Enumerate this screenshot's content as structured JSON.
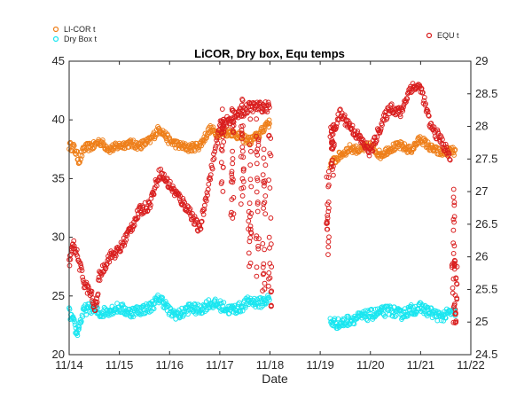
{
  "chart_data": {
    "type": "scatter",
    "title": "LiCOR, Dry box, Equ temps",
    "xlabel": "Date",
    "ylabel": "",
    "ylabel_right": "",
    "x_ticks": [
      "11/14",
      "11/15",
      "11/16",
      "11/17",
      "11/18",
      "11/19",
      "11/20",
      "11/21",
      "11/22"
    ],
    "xlim": [
      0,
      8
    ],
    "ylim": [
      20,
      45
    ],
    "ylim_right": [
      24.5,
      29
    ],
    "y_ticks": [
      20,
      25,
      30,
      35,
      40,
      45
    ],
    "y_ticks_right": [
      24.5,
      25,
      25.5,
      26,
      26.5,
      27,
      27.5,
      28,
      28.5,
      29
    ],
    "grid": false,
    "series": [
      {
        "name": "LI-COR t",
        "axis": "left",
        "color": "#EE7F1A",
        "marker": "open-circle",
        "anchors": [
          [
            0,
            37.8
          ],
          [
            0.1,
            37.6
          ],
          [
            0.2,
            36.5
          ],
          [
            0.3,
            37.6
          ],
          [
            0.5,
            37.8
          ],
          [
            0.6,
            38.2
          ],
          [
            0.8,
            37.5
          ],
          [
            1,
            37.8
          ],
          [
            1.2,
            38.0
          ],
          [
            1.4,
            37.8
          ],
          [
            1.6,
            38.2
          ],
          [
            1.8,
            39.3
          ],
          [
            2,
            38.2
          ],
          [
            2.2,
            37.8
          ],
          [
            2.4,
            37.6
          ],
          [
            2.6,
            37.8
          ],
          [
            2.8,
            39.2
          ],
          [
            3,
            38.8
          ],
          [
            3.2,
            39.0
          ],
          [
            3.4,
            38.6
          ],
          [
            3.6,
            38.2
          ],
          [
            3.8,
            38.8
          ],
          [
            3.95,
            39.8
          ],
          [
            4.0,
            39.6
          ],
          null,
          [
            5.2,
            36.2
          ],
          [
            5.4,
            37.0
          ],
          [
            5.6,
            37.6
          ],
          [
            5.8,
            37.4
          ],
          [
            6.0,
            37.8
          ],
          [
            6.2,
            37.0
          ],
          [
            6.4,
            37.6
          ],
          [
            6.6,
            37.8
          ],
          [
            6.8,
            37.4
          ],
          [
            7.0,
            38.4
          ],
          [
            7.2,
            37.6
          ],
          [
            7.4,
            37.2
          ],
          [
            7.6,
            37.4
          ],
          [
            7.7,
            37.2
          ]
        ],
        "spread": 0.35
      },
      {
        "name": "Dry Box t",
        "axis": "left",
        "color": "#19E6F0",
        "marker": "open-circle",
        "anchors": [
          [
            0,
            23.6
          ],
          [
            0.1,
            22.6
          ],
          [
            0.15,
            21.8
          ],
          [
            0.2,
            22.5
          ],
          [
            0.3,
            23.8
          ],
          [
            0.45,
            24.0
          ],
          [
            0.6,
            23.5
          ],
          [
            0.8,
            23.8
          ],
          [
            1,
            24.0
          ],
          [
            1.2,
            23.6
          ],
          [
            1.4,
            23.8
          ],
          [
            1.6,
            24.0
          ],
          [
            1.8,
            24.8
          ],
          [
            1.9,
            24.4
          ],
          [
            2,
            23.6
          ],
          [
            2.2,
            23.4
          ],
          [
            2.4,
            24.0
          ],
          [
            2.6,
            23.8
          ],
          [
            2.8,
            24.4
          ],
          [
            3,
            24.2
          ],
          [
            3.2,
            23.8
          ],
          [
            3.4,
            24.0
          ],
          [
            3.6,
            24.6
          ],
          [
            3.8,
            24.4
          ],
          [
            4.0,
            24.8
          ],
          null,
          [
            5.2,
            22.8
          ],
          [
            5.4,
            22.6
          ],
          [
            5.6,
            23.0
          ],
          [
            5.8,
            23.2
          ],
          [
            6.0,
            23.4
          ],
          [
            6.2,
            23.6
          ],
          [
            6.4,
            23.8
          ],
          [
            6.6,
            23.4
          ],
          [
            6.8,
            23.8
          ],
          [
            7.0,
            24.0
          ],
          [
            7.2,
            23.6
          ],
          [
            7.4,
            23.2
          ],
          [
            7.6,
            23.6
          ],
          [
            7.7,
            23.4
          ]
        ],
        "spread": 0.45
      },
      {
        "name": "EQU t",
        "axis": "right",
        "color": "#D91E1E",
        "marker": "open-circle",
        "anchors": [
          [
            0,
            25.9
          ],
          [
            0.05,
            26.1
          ],
          [
            0.1,
            26.2
          ],
          [
            0.2,
            25.9
          ],
          [
            0.3,
            25.6
          ],
          [
            0.45,
            25.4
          ],
          [
            0.5,
            25.2
          ],
          [
            0.55,
            25.3
          ],
          [
            0.6,
            25.7
          ],
          [
            0.8,
            26.0
          ],
          [
            1,
            26.1
          ],
          [
            1.2,
            26.4
          ],
          [
            1.4,
            26.7
          ],
          [
            1.6,
            26.8
          ],
          [
            1.8,
            27.3
          ],
          [
            2,
            27.1
          ],
          [
            2.2,
            26.9
          ],
          [
            2.4,
            26.7
          ],
          [
            2.6,
            26.4
          ],
          [
            2.8,
            27.2
          ],
          [
            3,
            28.0
          ],
          [
            3.2,
            28.1
          ],
          [
            3.4,
            28.2
          ],
          [
            3.6,
            28.3
          ],
          [
            3.8,
            28.3
          ],
          [
            4.0,
            28.3
          ],
          null,
          [
            5.2,
            27.9
          ],
          [
            5.3,
            28.0
          ],
          [
            5.4,
            28.2
          ],
          [
            5.6,
            28.0
          ],
          [
            5.8,
            27.8
          ],
          [
            6.0,
            27.6
          ],
          [
            6.2,
            28.0
          ],
          [
            6.4,
            28.3
          ],
          [
            6.6,
            28.2
          ],
          [
            6.8,
            28.6
          ],
          [
            7.0,
            28.6
          ],
          [
            7.2,
            28.0
          ],
          [
            7.4,
            27.8
          ],
          [
            7.6,
            27.5
          ]
        ],
        "spread": 0.08,
        "scatter_columns": [
          {
            "x": 3.05,
            "low": 27.0,
            "high": 28.3
          },
          {
            "x": 3.25,
            "low": 26.5,
            "high": 28.3
          },
          {
            "x": 3.45,
            "low": 26.8,
            "high": 28.5
          },
          {
            "x": 3.6,
            "low": 25.8,
            "high": 28.3
          },
          {
            "x": 3.75,
            "low": 25.6,
            "high": 28.2
          },
          {
            "x": 3.88,
            "low": 25.4,
            "high": 28.0
          },
          {
            "x": 4.0,
            "low": 25.2,
            "high": 28.3
          },
          {
            "x": 5.15,
            "low": 26.0,
            "high": 27.4
          },
          {
            "x": 5.25,
            "low": 27.2,
            "high": 28.0
          },
          {
            "x": 7.65,
            "low": 24.9,
            "high": 27.2
          },
          {
            "x": 7.7,
            "low": 24.95,
            "high": 26.0
          }
        ]
      }
    ],
    "legend": [
      {
        "label": "LI-COR t",
        "color": "#EE7F1A",
        "placement": "top-left"
      },
      {
        "label": "Dry Box t",
        "color": "#19E6F0",
        "placement": "top-left"
      },
      {
        "label": "EQU t",
        "color": "#D91E1E",
        "placement": "top-right"
      }
    ]
  }
}
